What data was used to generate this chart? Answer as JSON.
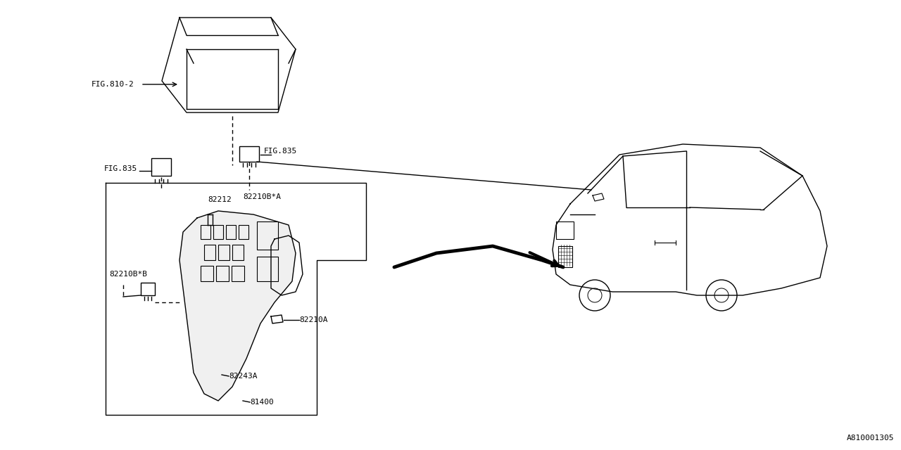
{
  "title": "",
  "bg_color": "#ffffff",
  "line_color": "#000000",
  "diagram_id": "A810001305",
  "parts": {
    "cover_label": "FIG.810-2",
    "relay1_label": "FIG.835",
    "relay2_label": "FIG.835",
    "part_82212": "82212",
    "part_82210BA": "82210B*A",
    "part_82210BB": "82210B*B",
    "part_82210A": "82210A",
    "part_82243A": "82243A",
    "part_81400": "81400"
  }
}
